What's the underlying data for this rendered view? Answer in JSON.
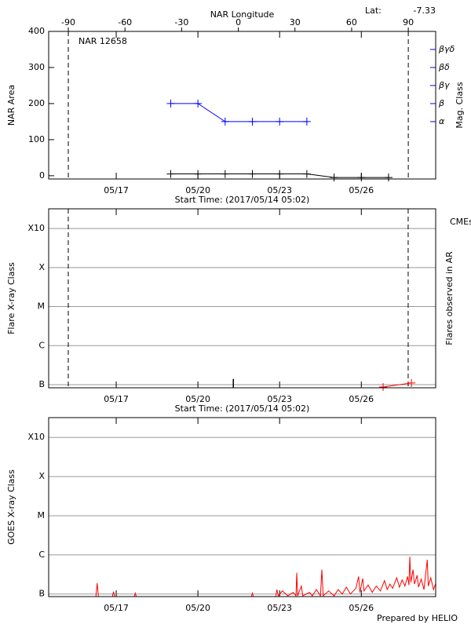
{
  "footer": "Prepared by HELIO",
  "chart_data": [
    {
      "type": "line",
      "title": "NAR 12658",
      "lat_label": "Lat:",
      "lat": -7.33,
      "xlabel": "Start Time: (2017/05/14 05:02)",
      "ylabel": "NAR Area",
      "y2label": "Mag. Class",
      "x2label": "NAR Longitude",
      "xlim": [
        14.52,
        28.73
      ],
      "xticks": [
        {
          "value": 17,
          "label": "05/17"
        },
        {
          "value": 20,
          "label": "05/20"
        },
        {
          "value": 23,
          "label": "05/23"
        },
        {
          "value": 26,
          "label": "05/26"
        }
      ],
      "x2lim": [
        -100.4,
        104.5
      ],
      "x2ticks": [
        -90,
        -60,
        -30,
        0,
        30,
        60,
        90
      ],
      "x2_vlines": [
        -90,
        90
      ],
      "ylim": [
        -9,
        400
      ],
      "yticks": [
        0,
        100,
        200,
        300,
        400
      ],
      "grid": false,
      "log_y": false,
      "y2lim": [
        -9,
        400
      ],
      "y2_color": "#0000ff",
      "y2ticks": [
        {
          "value": 150,
          "label": "α"
        },
        {
          "value": 200,
          "label": "β"
        },
        {
          "value": 250,
          "label": "βγ"
        },
        {
          "value": 300,
          "label": "βδ"
        },
        {
          "value": 350,
          "label": "βγδ"
        }
      ],
      "series": [
        {
          "color": "#000000",
          "marker": "+",
          "x": [
            19,
            20,
            21,
            22,
            23,
            24,
            25,
            26,
            27
          ],
          "values": [
            5,
            5,
            5,
            5,
            5,
            5,
            -5,
            -5,
            -5
          ]
        },
        {
          "color": "#0000ff",
          "marker": "+",
          "axis": "y2",
          "x": [
            19,
            20,
            21,
            22,
            23,
            24
          ],
          "values": [
            200,
            200,
            150,
            150,
            150,
            150
          ]
        }
      ]
    },
    {
      "type": "line",
      "xlabel": "Start Time: (2017/05/14 05:02)",
      "ylabel": "Flare X-ray Class",
      "y2label": "Flares observed in AR",
      "xlim": [
        14.52,
        28.73
      ],
      "xticks": [
        {
          "value": 17,
          "label": "05/17"
        },
        {
          "value": 20,
          "label": "05/20"
        },
        {
          "value": 23,
          "label": "05/23"
        },
        {
          "value": 26,
          "label": "05/26"
        }
      ],
      "x_vlines": [
        15.24,
        27.72
      ],
      "ylim": [
        8.3e-08,
        0.0032
      ],
      "log_y": true,
      "grid": true,
      "yticks": [
        {
          "value": 1e-07,
          "label": "B"
        },
        {
          "value": 1e-06,
          "label": "C"
        },
        {
          "value": 1e-05,
          "label": "M"
        },
        {
          "value": 0.0001,
          "label": "X"
        },
        {
          "value": 0.001,
          "label": "X10"
        }
      ],
      "series": [
        {
          "color": "#000000",
          "mark": "stick",
          "x": [
            21.3
          ],
          "values": [
            1.4e-07
          ]
        },
        {
          "name": "CMEs",
          "color": "#ff0000",
          "marker": "+",
          "x": [
            26.8,
            27.84
          ],
          "values": [
            8.7e-08,
            1.1e-07
          ]
        }
      ]
    },
    {
      "type": "line",
      "ylabel": "GOES X-ray Class",
      "xlim": [
        14.52,
        28.73
      ],
      "xticks": [
        {
          "value": 17,
          "label": "05/17"
        },
        {
          "value": 20,
          "label": "05/20"
        },
        {
          "value": 23,
          "label": "05/23"
        },
        {
          "value": 26,
          "label": "05/26"
        }
      ],
      "ylim": [
        8.6e-08,
        0.0032
      ],
      "log_y": true,
      "grid": true,
      "yticks": [
        {
          "value": 1e-07,
          "label": "B"
        },
        {
          "value": 1e-06,
          "label": "C"
        },
        {
          "value": 1e-05,
          "label": "M"
        },
        {
          "value": 0.0001,
          "label": "X"
        },
        {
          "value": 0.001,
          "label": "X10"
        }
      ],
      "series": [
        {
          "color": "#ff0000",
          "x": [
            14.6,
            16.25,
            16.3,
            16.35,
            16.85,
            16.9,
            16.95,
            17.65,
            17.7,
            17.75,
            21.95,
            22.0,
            22.05,
            22.85,
            22.9,
            22.95,
            23.1,
            23.3,
            23.5,
            23.6,
            23.63,
            23.66,
            23.8,
            23.85,
            24.1,
            24.2,
            24.35,
            24.5,
            24.55,
            24.6,
            24.8,
            25.0,
            25.15,
            25.3,
            25.45,
            25.6,
            25.8,
            25.9,
            25.95,
            26.05,
            26.1,
            26.25,
            26.4,
            26.55,
            26.7,
            26.85,
            26.95,
            27.05,
            27.15,
            27.3,
            27.4,
            27.5,
            27.6,
            27.7,
            27.75,
            27.78,
            27.82,
            27.9,
            27.95,
            28.05,
            28.1,
            28.2,
            28.3,
            28.42,
            28.46,
            28.55,
            28.65,
            28.72
          ],
          "values": [
            8e-08,
            8e-08,
            1.9e-07,
            8e-08,
            8e-08,
            1.15e-07,
            8e-08,
            8e-08,
            1.05e-07,
            8e-08,
            8e-08,
            1.05e-07,
            8e-08,
            8e-08,
            1.3e-07,
            9e-08,
            1.2e-07,
            9e-08,
            1.1e-07,
            9e-08,
            3.5e-07,
            9e-08,
            1.6e-07,
            9e-08,
            1.1e-07,
            9e-08,
            1.3e-07,
            9e-08,
            4.2e-07,
            9e-08,
            1.2e-07,
            9e-08,
            1.3e-07,
            1e-07,
            1.5e-07,
            1e-07,
            1.4e-07,
            2.8e-07,
            1.1e-07,
            2.5e-07,
            1.2e-07,
            1.7e-07,
            1.1e-07,
            1.6e-07,
            1.2e-07,
            2.2e-07,
            1.3e-07,
            1.8e-07,
            1.4e-07,
            2.6e-07,
            1.5e-07,
            2.3e-07,
            1.6e-07,
            2.8e-07,
            1.7e-07,
            9e-07,
            2e-07,
            4.2e-07,
            1.8e-07,
            3e-07,
            1.5e-07,
            2.4e-07,
            1.3e-07,
            7.5e-07,
            1.6e-07,
            2.6e-07,
            1.3e-07,
            1.8e-07
          ]
        }
      ]
    }
  ]
}
